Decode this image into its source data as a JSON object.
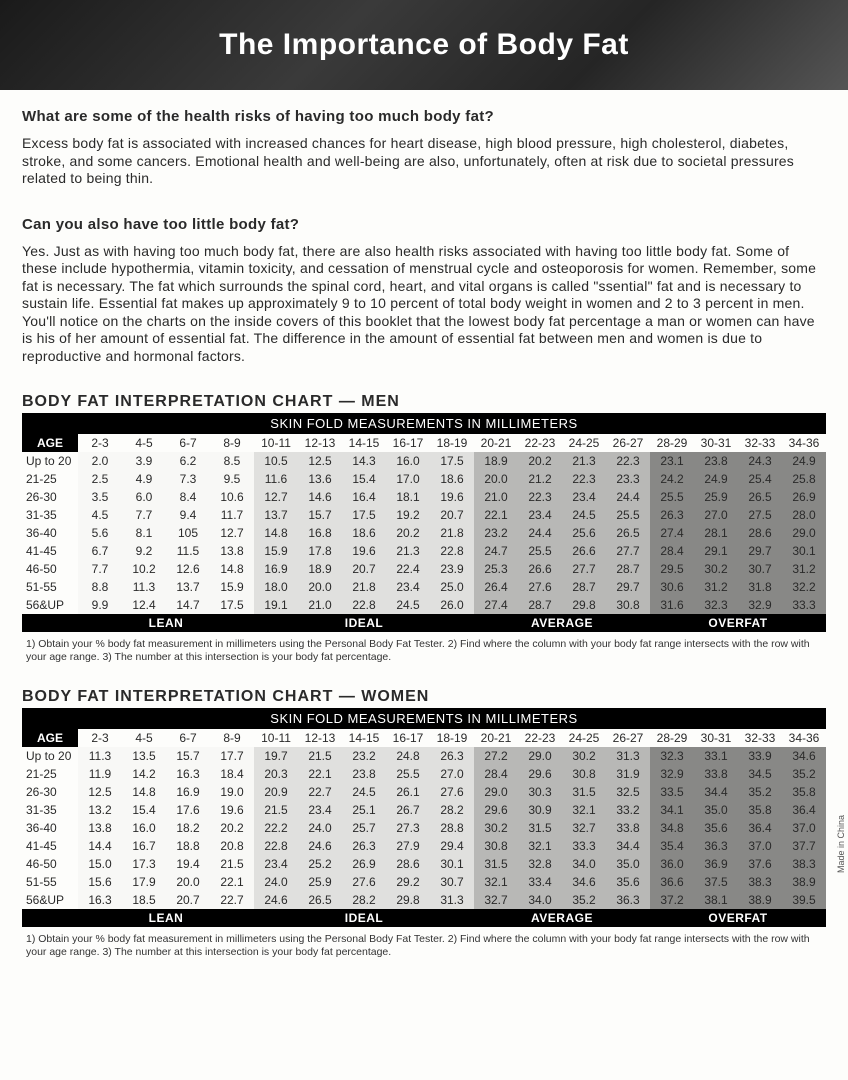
{
  "title": "The Importance of Body Fat",
  "q1": "What are some of the health risks of having too much body fat?",
  "a1": "Excess body fat is associated with increased chances for heart disease, high blood pressure, high cholesterol, diabetes, stroke, and some cancers. Emotional health and well-being are also, unfortunately, often at risk due to societal pressures related to being thin.",
  "q2": "Can you also have too little body fat?",
  "a2": "Yes. Just as with having too much body fat, there are also health risks associated with having too little body fat. Some of these include hypothermia, vitamin toxicity, and cessation of menstrual cycle and osteoporosis for women. Remember, some fat is necessary. The fat which surrounds the spinal cord, heart, and vital organs is called \"ssential\" fat and is necessary to sustain life. Essential fat makes up approximately 9 to 10 percent of total body weight in women and 2 to 3 percent in men. You'll notice on the charts on the inside covers of this booklet that the lowest body fat percentage a man or women can have is his of her amount of essential fat. The difference in the amount of essential fat between men and women is due to reproductive and hormonal factors.",
  "side_note": "Made in China",
  "footnote": "1) Obtain your % body fat measurement in millimeters using the Personal Body Fat Tester. 2) Find where the column with your body fat range intersects with the row with your age range. 3) The number at this intersection is your body fat percentage.",
  "charts": {
    "men": {
      "title": "BODY FAT INTERPRETATION CHART — MEN",
      "subhead": "SKIN FOLD MEASUREMENTS IN MILLIMETERS",
      "age_label": "AGE",
      "columns": [
        "2-3",
        "4-5",
        "6-7",
        "8-9",
        "10-11",
        "12-13",
        "14-15",
        "16-17",
        "18-19",
        "20-21",
        "22-23",
        "24-25",
        "26-27",
        "28-29",
        "30-31",
        "32-33",
        "34-36"
      ],
      "shade_ranges": {
        "lean": [
          0,
          3
        ],
        "ideal": [
          4,
          8
        ],
        "avg": [
          9,
          12
        ],
        "over": [
          13,
          16
        ]
      },
      "rows": [
        {
          "age": "Up to 20",
          "v": [
            "2.0",
            "3.9",
            "6.2",
            "8.5",
            "10.5",
            "12.5",
            "14.3",
            "16.0",
            "17.5",
            "18.9",
            "20.2",
            "21.3",
            "22.3",
            "23.1",
            "23.8",
            "24.3",
            "24.9"
          ]
        },
        {
          "age": "21-25",
          "v": [
            "2.5",
            "4.9",
            "7.3",
            "9.5",
            "11.6",
            "13.6",
            "15.4",
            "17.0",
            "18.6",
            "20.0",
            "21.2",
            "22.3",
            "23.3",
            "24.2",
            "24.9",
            "25.4",
            "25.8"
          ]
        },
        {
          "age": "26-30",
          "v": [
            "3.5",
            "6.0",
            "8.4",
            "10.6",
            "12.7",
            "14.6",
            "16.4",
            "18.1",
            "19.6",
            "21.0",
            "22.3",
            "23.4",
            "24.4",
            "25.5",
            "25.9",
            "26.5",
            "26.9"
          ]
        },
        {
          "age": "31-35",
          "v": [
            "4.5",
            "7.7",
            "9.4",
            "11.7",
            "13.7",
            "15.7",
            "17.5",
            "19.2",
            "20.7",
            "22.1",
            "23.4",
            "24.5",
            "25.5",
            "26.3",
            "27.0",
            "27.5",
            "28.0"
          ]
        },
        {
          "age": "36-40",
          "v": [
            "5.6",
            "8.1",
            "105",
            "12.7",
            "14.8",
            "16.8",
            "18.6",
            "20.2",
            "21.8",
            "23.2",
            "24.4",
            "25.6",
            "26.5",
            "27.4",
            "28.1",
            "28.6",
            "29.0"
          ]
        },
        {
          "age": "41-45",
          "v": [
            "6.7",
            "9.2",
            "11.5",
            "13.8",
            "15.9",
            "17.8",
            "19.6",
            "21.3",
            "22.8",
            "24.7",
            "25.5",
            "26.6",
            "27.7",
            "28.4",
            "29.1",
            "29.7",
            "30.1"
          ]
        },
        {
          "age": "46-50",
          "v": [
            "7.7",
            "10.2",
            "12.6",
            "14.8",
            "16.9",
            "18.9",
            "20.7",
            "22.4",
            "23.9",
            "25.3",
            "26.6",
            "27.7",
            "28.7",
            "29.5",
            "30.2",
            "30.7",
            "31.2"
          ]
        },
        {
          "age": "51-55",
          "v": [
            "8.8",
            "11.3",
            "13.7",
            "15.9",
            "18.0",
            "20.0",
            "21.8",
            "23.4",
            "25.0",
            "26.4",
            "27.6",
            "28.7",
            "29.7",
            "30.6",
            "31.2",
            "31.8",
            "32.2"
          ]
        },
        {
          "age": "56&UP",
          "v": [
            "9.9",
            "12.4",
            "14.7",
            "17.5",
            "19.1",
            "21.0",
            "22.8",
            "24.5",
            "26.0",
            "27.4",
            "28.7",
            "29.8",
            "30.8",
            "31.6",
            "32.3",
            "32.9",
            "33.3"
          ]
        }
      ],
      "categories": [
        "LEAN",
        "IDEAL",
        "AVERAGE",
        "OVERFAT"
      ]
    },
    "women": {
      "title": "BODY FAT INTERPRETATION CHART — WOMEN",
      "subhead": "SKIN FOLD MEASUREMENTS IN MILLIMETERS",
      "age_label": "AGE",
      "columns": [
        "2-3",
        "4-5",
        "6-7",
        "8-9",
        "10-11",
        "12-13",
        "14-15",
        "16-17",
        "18-19",
        "20-21",
        "22-23",
        "24-25",
        "26-27",
        "28-29",
        "30-31",
        "32-33",
        "34-36"
      ],
      "shade_ranges": {
        "lean": [
          0,
          3
        ],
        "ideal": [
          4,
          8
        ],
        "avg": [
          9,
          12
        ],
        "over": [
          13,
          16
        ]
      },
      "rows": [
        {
          "age": "Up to 20",
          "v": [
            "11.3",
            "13.5",
            "15.7",
            "17.7",
            "19.7",
            "21.5",
            "23.2",
            "24.8",
            "26.3",
            "27.2",
            "29.0",
            "30.2",
            "31.3",
            "32.3",
            "33.1",
            "33.9",
            "34.6"
          ]
        },
        {
          "age": "21-25",
          "v": [
            "11.9",
            "14.2",
            "16.3",
            "18.4",
            "20.3",
            "22.1",
            "23.8",
            "25.5",
            "27.0",
            "28.4",
            "29.6",
            "30.8",
            "31.9",
            "32.9",
            "33.8",
            "34.5",
            "35.2"
          ]
        },
        {
          "age": "26-30",
          "v": [
            "12.5",
            "14.8",
            "16.9",
            "19.0",
            "20.9",
            "22.7",
            "24.5",
            "26.1",
            "27.6",
            "29.0",
            "30.3",
            "31.5",
            "32.5",
            "33.5",
            "34.4",
            "35.2",
            "35.8"
          ]
        },
        {
          "age": "31-35",
          "v": [
            "13.2",
            "15.4",
            "17.6",
            "19.6",
            "21.5",
            "23.4",
            "25.1",
            "26.7",
            "28.2",
            "29.6",
            "30.9",
            "32.1",
            "33.2",
            "34.1",
            "35.0",
            "35.8",
            "36.4"
          ]
        },
        {
          "age": "36-40",
          "v": [
            "13.8",
            "16.0",
            "18.2",
            "20.2",
            "22.2",
            "24.0",
            "25.7",
            "27.3",
            "28.8",
            "30.2",
            "31.5",
            "32.7",
            "33.8",
            "34.8",
            "35.6",
            "36.4",
            "37.0"
          ]
        },
        {
          "age": "41-45",
          "v": [
            "14.4",
            "16.7",
            "18.8",
            "20.8",
            "22.8",
            "24.6",
            "26.3",
            "27.9",
            "29.4",
            "30.8",
            "32.1",
            "33.3",
            "34.4",
            "35.4",
            "36.3",
            "37.0",
            "37.7"
          ]
        },
        {
          "age": "46-50",
          "v": [
            "15.0",
            "17.3",
            "19.4",
            "21.5",
            "23.4",
            "25.2",
            "26.9",
            "28.6",
            "30.1",
            "31.5",
            "32.8",
            "34.0",
            "35.0",
            "36.0",
            "36.9",
            "37.6",
            "38.3"
          ]
        },
        {
          "age": "51-55",
          "v": [
            "15.6",
            "17.9",
            "20.0",
            "22.1",
            "24.0",
            "25.9",
            "27.6",
            "29.2",
            "30.7",
            "32.1",
            "33.4",
            "34.6",
            "35.6",
            "36.6",
            "37.5",
            "38.3",
            "38.9"
          ]
        },
        {
          "age": "56&UP",
          "v": [
            "16.3",
            "18.5",
            "20.7",
            "22.7",
            "24.6",
            "26.5",
            "28.2",
            "29.8",
            "31.3",
            "32.7",
            "34.0",
            "35.2",
            "36.3",
            "37.2",
            "38.1",
            "38.9",
            "39.5"
          ]
        }
      ],
      "categories": [
        "LEAN",
        "IDEAL",
        "AVERAGE",
        "OVERFAT"
      ]
    }
  }
}
